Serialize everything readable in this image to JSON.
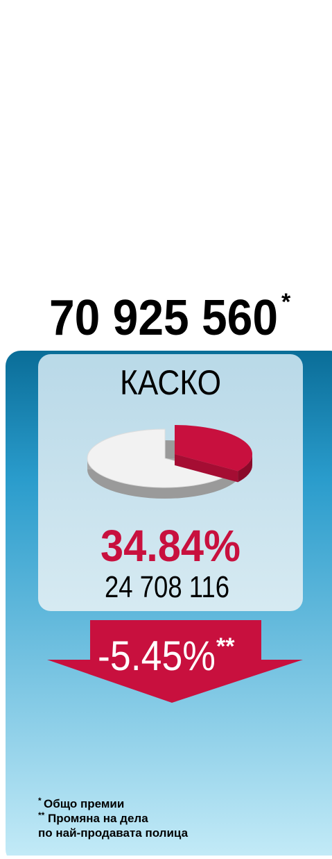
{
  "total": "70 925 560",
  "total_mark": "*",
  "category": "КАСКО",
  "share": {
    "value": 34.84,
    "label": "34.84%"
  },
  "amount": "24 708 116",
  "change": "-5.45%",
  "change_mark": "**",
  "footnotes": [
    {
      "mark": "*",
      "lines": [
        "Общо премии"
      ]
    },
    {
      "mark": "**",
      "lines": [
        "Промяна на дела",
        "по най-продавата полица"
      ]
    }
  ]
}
